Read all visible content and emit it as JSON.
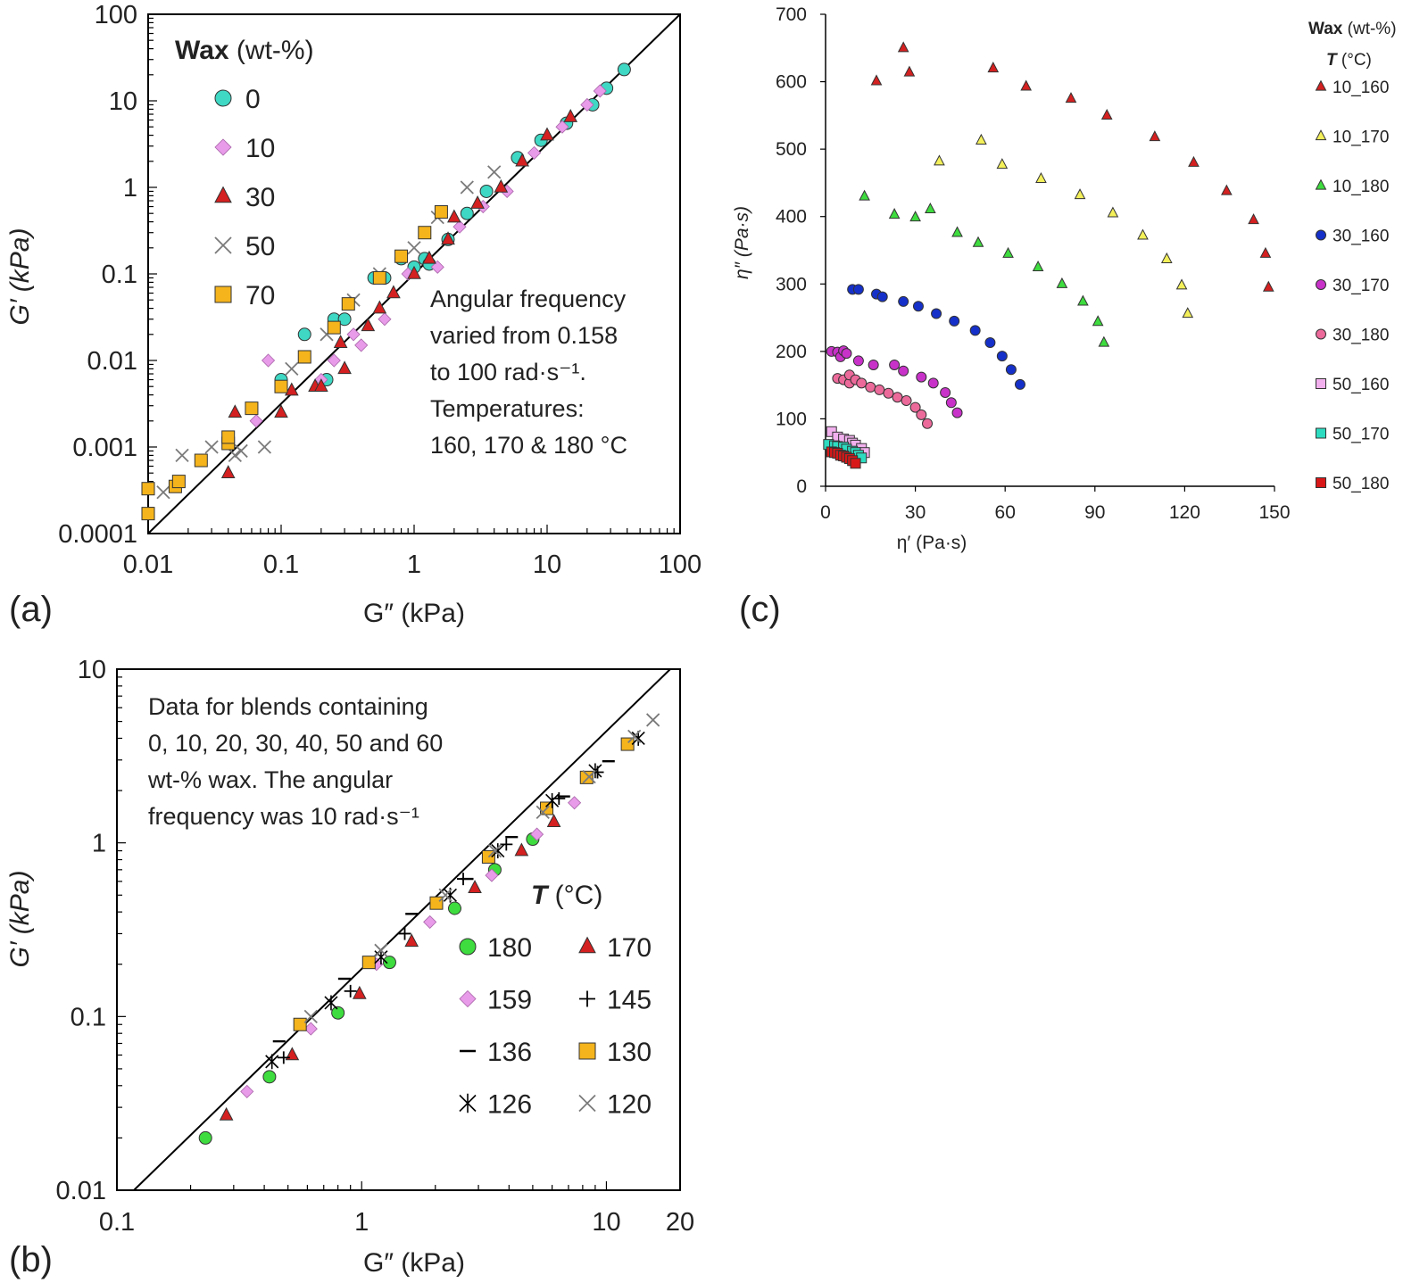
{
  "charts": {
    "a": {
      "panel_label": "(a)",
      "x_label": "G″ (kPa)",
      "y_label": "G′ (kPa)",
      "x_ticks": [
        "0.01",
        "0.1",
        "1",
        "10",
        "100"
      ],
      "y_ticks": [
        "0.0001",
        "0.001",
        "0.01",
        "0.1",
        "1",
        "10",
        "100"
      ],
      "legend_title_bold": "Wax",
      "legend_title_rest": " (wt-%)",
      "legend": [
        "0",
        "10",
        "30",
        "50",
        "70"
      ],
      "annotation": [
        "Angular frequency",
        "varied from 0.158",
        "to 100 rad·s⁻¹.",
        "Temperatures:",
        "160, 170 & 180 °C"
      ]
    },
    "b": {
      "panel_label": "(b)",
      "x_label": "G″ (kPa)",
      "y_label": "G′ (kPa)",
      "x_ticks": [
        "0.1",
        "1",
        "10",
        "20"
      ],
      "y_ticks": [
        "0.01",
        "0.1",
        "1",
        "10"
      ],
      "legend_title_bold": "T",
      "legend_title_rest": " (°C)",
      "legend": [
        "180",
        "170",
        "159",
        "145",
        "136",
        "130",
        "126",
        "120"
      ],
      "annotation": [
        "Data  for blends containing",
        "0, 10, 20, 30, 40, 50 and 60",
        "wt-% wax.  The angular",
        "frequency was 10 rad·s⁻¹"
      ]
    },
    "c": {
      "panel_label": "(c)",
      "x_label": "η′ (Pa·s)",
      "y_label": "η″ (Pa·s)",
      "x_ticks": [
        "0",
        "30",
        "60",
        "90",
        "120",
        "150"
      ],
      "y_ticks": [
        "0",
        "100",
        "200",
        "300",
        "400",
        "500",
        "600",
        "700"
      ],
      "legend_title_bold": "Wax",
      "legend_title_rest": " (wt-%)",
      "legend_title2_bold": "T",
      "legend_title2_rest": " (°C)",
      "legend": [
        "10_160",
        "10_170",
        "10_180",
        "30_160",
        "30_170",
        "30_180",
        "50_160",
        "50_170",
        "50_180"
      ]
    }
  },
  "colors": {
    "cyan": "#3ed8c4",
    "pink": "#e79be8",
    "red": "#d42020",
    "grey": "#7a7a7a",
    "orange": "#f5b41c",
    "yellow": "#f3f05a",
    "green": "#3edc3e",
    "blue": "#1530c8",
    "magenta": "#c832c8",
    "rose": "#ec6a9a",
    "lightpink": "#f2b0ee",
    "teal": "#2ddcc0",
    "darkred": "#d81818"
  },
  "chart_data": [
    {
      "type": "scatter",
      "panel": "a",
      "x_scale": "log",
      "y_scale": "log",
      "xlim": [
        0.01,
        100
      ],
      "ylim": [
        0.0001,
        100
      ],
      "reference_line": "y = x",
      "series": [
        {
          "name": "0",
          "marker": "circle",
          "color": "cyan",
          "x": [
            0.1,
            0.15,
            0.22,
            0.25,
            0.5,
            0.6,
            0.3,
            0.8,
            1.0,
            1.2,
            1.3,
            1.8,
            2.5,
            3.5,
            6.0,
            9.0,
            14.0,
            22.0,
            28.0,
            38.0
          ],
          "y": [
            0.006,
            0.02,
            0.006,
            0.03,
            0.09,
            0.09,
            0.03,
            0.15,
            0.12,
            0.15,
            0.13,
            0.25,
            0.5,
            0.9,
            2.2,
            3.5,
            5.5,
            9.0,
            14.0,
            23.0
          ]
        },
        {
          "name": "10",
          "marker": "diamond",
          "color": "pink",
          "x": [
            0.065,
            0.08,
            0.2,
            0.25,
            0.35,
            0.4,
            0.6,
            0.9,
            1.5,
            2.2,
            3.3,
            5.0,
            8.0,
            13.0,
            20.0,
            25.0
          ],
          "y": [
            0.002,
            0.01,
            0.006,
            0.01,
            0.02,
            0.015,
            0.03,
            0.1,
            0.12,
            0.35,
            0.6,
            0.9,
            2.5,
            5.0,
            9.0,
            13.0
          ]
        },
        {
          "name": "30",
          "marker": "triangle",
          "color": "red",
          "x": [
            0.04,
            0.045,
            0.1,
            0.12,
            0.18,
            0.2,
            0.28,
            0.3,
            0.45,
            0.55,
            0.7,
            1.0,
            1.3,
            1.8,
            2.0,
            3.0,
            4.5,
            6.5,
            10.0,
            15.0
          ],
          "y": [
            0.0005,
            0.0025,
            0.0025,
            0.0045,
            0.005,
            0.005,
            0.016,
            0.008,
            0.025,
            0.04,
            0.06,
            0.1,
            0.15,
            0.25,
            0.45,
            0.65,
            1.0,
            2.0,
            4.0,
            6.5
          ]
        },
        {
          "name": "50",
          "marker": "x",
          "color": "grey",
          "x": [
            0.013,
            0.018,
            0.03,
            0.045,
            0.05,
            0.075,
            0.12,
            0.22,
            0.35,
            0.55,
            1.0,
            1.5,
            2.5,
            4.0
          ],
          "y": [
            0.0003,
            0.0008,
            0.001,
            0.0008,
            0.0009,
            0.001,
            0.008,
            0.02,
            0.05,
            0.1,
            0.2,
            0.45,
            1.0,
            1.5
          ]
        },
        {
          "name": "70",
          "marker": "square",
          "color": "orange",
          "x": [
            0.01,
            0.01,
            0.016,
            0.017,
            0.025,
            0.04,
            0.04,
            0.06,
            0.1,
            0.15,
            0.25,
            0.32,
            0.55,
            0.8,
            1.2,
            1.6
          ],
          "y": [
            0.00017,
            0.00033,
            0.00035,
            0.0004,
            0.0007,
            0.0011,
            0.0013,
            0.0028,
            0.005,
            0.011,
            0.024,
            0.045,
            0.09,
            0.16,
            0.3,
            0.52
          ]
        }
      ]
    },
    {
      "type": "scatter",
      "panel": "b",
      "x_scale": "log",
      "y_scale": "log",
      "xlim": [
        0.1,
        20
      ],
      "ylim": [
        0.01,
        10
      ],
      "reference_line": "y = 0.33 x",
      "series": [
        {
          "name": "180",
          "marker": "circle",
          "color": "green",
          "x": [
            0.23,
            0.42,
            0.8,
            1.3,
            2.4,
            3.5,
            5.0
          ],
          "y": [
            0.02,
            0.045,
            0.105,
            0.205,
            0.42,
            0.7,
            1.05
          ]
        },
        {
          "name": "170",
          "marker": "triangle",
          "color": "red",
          "x": [
            0.28,
            0.52,
            0.98,
            1.6,
            2.9,
            4.5,
            6.1
          ],
          "y": [
            0.027,
            0.06,
            0.135,
            0.27,
            0.55,
            0.9,
            1.32
          ]
        },
        {
          "name": "159",
          "marker": "diamond",
          "color": "pink",
          "x": [
            0.34,
            0.62,
            1.15,
            1.9,
            3.4,
            5.2,
            7.4
          ],
          "y": [
            0.037,
            0.085,
            0.2,
            0.35,
            0.65,
            1.12,
            1.7
          ]
        },
        {
          "name": "145",
          "marker": "plus",
          "color": "black",
          "x": [
            0.48,
            0.9,
            1.5,
            2.6,
            3.9,
            6.4,
            9.2
          ],
          "y": [
            0.058,
            0.14,
            0.3,
            0.62,
            0.98,
            1.8,
            2.55
          ]
        },
        {
          "name": "136",
          "marker": "dash",
          "color": "black",
          "x": [
            0.46,
            0.85,
            1.6,
            2.7,
            4.1,
            6.7,
            10.2
          ],
          "y": [
            0.072,
            0.165,
            0.39,
            0.62,
            1.08,
            1.85,
            2.95
          ]
        },
        {
          "name": "130",
          "marker": "square",
          "color": "orange",
          "x": [
            0.56,
            1.07,
            2.02,
            3.3,
            5.7,
            8.3,
            12.2
          ],
          "y": [
            0.09,
            0.205,
            0.45,
            0.83,
            1.58,
            2.38,
            3.7
          ]
        },
        {
          "name": "126",
          "marker": "asterisk",
          "color": "black",
          "x": [
            0.43,
            0.75,
            1.2,
            2.3,
            3.6,
            6.0,
            9.0,
            13.5
          ],
          "y": [
            0.055,
            0.12,
            0.22,
            0.5,
            0.9,
            1.75,
            2.6,
            4.0
          ]
        },
        {
          "name": "120",
          "marker": "x",
          "color": "grey",
          "x": [
            0.62,
            1.2,
            2.2,
            3.5,
            5.5,
            8.5,
            13.0,
            15.5
          ],
          "y": [
            0.1,
            0.24,
            0.5,
            0.9,
            1.5,
            2.4,
            4.1,
            5.1
          ]
        }
      ]
    },
    {
      "type": "scatter",
      "panel": "c",
      "x_scale": "linear",
      "y_scale": "linear",
      "xlim": [
        0,
        150
      ],
      "ylim": [
        0,
        700
      ],
      "series": [
        {
          "name": "10_160",
          "marker": "triangle",
          "color": "red",
          "x": [
            17,
            26,
            28,
            56,
            67,
            82,
            94,
            110,
            123,
            134,
            143,
            147,
            148
          ],
          "y": [
            601,
            650,
            614,
            620,
            593,
            575,
            550,
            518,
            480,
            438,
            395,
            345,
            295
          ]
        },
        {
          "name": "10_170",
          "marker": "triangle",
          "color": "yellow",
          "x": [
            38,
            52,
            59,
            72,
            85,
            96,
            106,
            114,
            119,
            121
          ],
          "y": [
            482,
            513,
            477,
            456,
            432,
            405,
            372,
            337,
            298,
            256
          ]
        },
        {
          "name": "10_180",
          "marker": "triangle",
          "color": "green",
          "x": [
            13,
            23,
            30,
            35,
            44,
            51,
            61,
            71,
            79,
            86,
            91,
            93
          ],
          "y": [
            430,
            403,
            399,
            411,
            376,
            361,
            345,
            325,
            300,
            274,
            244,
            213
          ]
        },
        {
          "name": "30_160",
          "marker": "circle",
          "color": "blue",
          "x": [
            9,
            11,
            17,
            19,
            26,
            31,
            37,
            43,
            50,
            55,
            59,
            62,
            65
          ],
          "y": [
            292,
            292,
            285,
            281,
            274,
            267,
            256,
            245,
            231,
            213,
            193,
            173,
            151
          ]
        },
        {
          "name": "30_170",
          "marker": "circle",
          "color": "magenta",
          "x": [
            2,
            4,
            5,
            6,
            7,
            11,
            16,
            23,
            26,
            32,
            36,
            40,
            42,
            44
          ],
          "y": [
            200,
            199,
            192,
            201,
            197,
            186,
            180,
            180,
            171,
            162,
            153,
            139,
            124,
            109
          ]
        },
        {
          "name": "30_180",
          "marker": "circle",
          "color": "rose",
          "x": [
            4,
            6,
            8,
            8,
            10,
            12,
            15,
            18,
            21,
            24,
            27,
            30,
            32,
            34
          ],
          "y": [
            160,
            158,
            153,
            165,
            158,
            153,
            147,
            143,
            138,
            132,
            127,
            117,
            106,
            93
          ]
        },
        {
          "name": "50_160",
          "marker": "square",
          "color": "lightpink",
          "x": [
            2,
            4,
            6,
            8,
            9,
            10,
            12,
            13
          ],
          "y": [
            81,
            73,
            70,
            68,
            64,
            61,
            56,
            50
          ]
        },
        {
          "name": "50_170",
          "marker": "square",
          "color": "teal",
          "x": [
            1,
            3,
            4,
            6,
            7,
            9,
            10,
            11,
            12
          ],
          "y": [
            62,
            60,
            59,
            58,
            55,
            52,
            50,
            46,
            42
          ]
        },
        {
          "name": "50_180",
          "marker": "square",
          "color": "darkred",
          "x": [
            2,
            3,
            4,
            5,
            6,
            7,
            8,
            9,
            10
          ],
          "y": [
            51,
            50,
            49,
            46,
            45,
            43,
            41,
            38,
            34
          ]
        }
      ]
    }
  ]
}
